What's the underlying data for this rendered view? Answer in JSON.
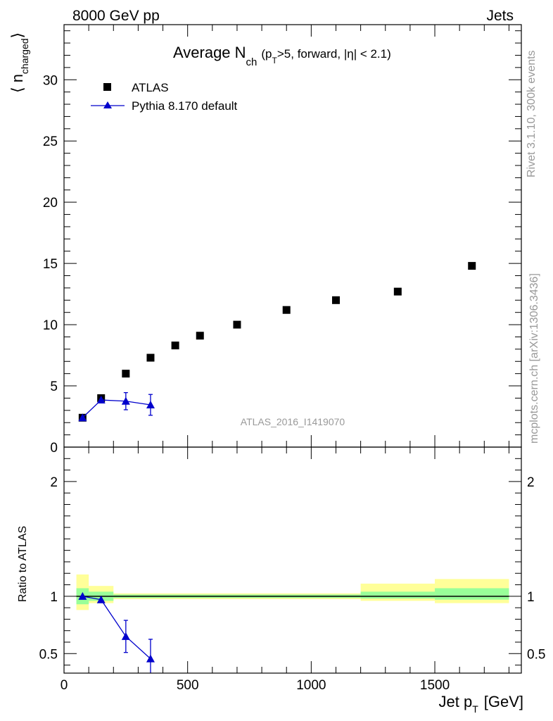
{
  "header": {
    "left": "8000 GeV pp",
    "right": "Jets"
  },
  "side_labels": {
    "rivet": "Rivet 3.1.10,  300k events",
    "mcplots": "mcplots.cern.ch [arXiv:1306.3436]"
  },
  "watermark": "ATLAS_2016_I1419070",
  "colors": {
    "data": "#000000",
    "mc": "#0000cc",
    "band_inner": "#99ff99",
    "band_outer": "#ffff99",
    "axis": "#000000",
    "watermark": "#999999"
  },
  "chart_data": [
    {
      "type": "scatter",
      "title_main": "Average N",
      "title_sub": "ch",
      "title_suffix_1": "(p",
      "title_suffix_sub": "T",
      "title_suffix_2": ">5, forward, |η| < 2.1)",
      "ylabel_main": "⟨ n",
      "ylabel_sub": "charged",
      "ylabel_close": "⟩",
      "xlim": [
        0,
        1850
      ],
      "ylim": [
        0,
        34.5
      ],
      "yticks": [
        0,
        5,
        10,
        15,
        20,
        25,
        30
      ],
      "ytick_labels": [
        "0",
        "5",
        "10",
        "15",
        "20",
        "25",
        "30"
      ],
      "legend_placement": "top-left",
      "series": [
        {
          "name": "ATLAS",
          "marker": "square",
          "x": [
            75,
            150,
            250,
            350,
            450,
            550,
            700,
            900,
            1100,
            1350,
            1650
          ],
          "y": [
            2.4,
            4.0,
            6.0,
            7.3,
            8.3,
            9.1,
            10.0,
            11.2,
            12.0,
            12.7,
            14.8
          ]
        },
        {
          "name": "Pythia 8.170 default",
          "marker": "triangle",
          "x": [
            75,
            150,
            250,
            350
          ],
          "y": [
            2.4,
            3.85,
            3.75,
            3.45
          ],
          "yerr": [
            0.05,
            0.1,
            0.7,
            0.85
          ]
        }
      ]
    },
    {
      "type": "line",
      "ylabel": "Ratio to ATLAS",
      "xlabel_main": "Jet p",
      "xlabel_sub": "T",
      "xlabel_unit": "[GeV]",
      "xlim": [
        0,
        1850
      ],
      "ylim": [
        0.33,
        2.3
      ],
      "yticks": [
        0.5,
        1,
        2
      ],
      "ytick_labels": [
        "0.5",
        "1",
        "2"
      ],
      "xticks": [
        0,
        500,
        1000,
        1500
      ],
      "xtick_labels": [
        "0",
        "500",
        "1000",
        "1500"
      ],
      "bands": [
        {
          "x0": 50,
          "x1": 100,
          "inner": [
            0.93,
            1.07
          ],
          "outer": [
            0.88,
            1.19
          ]
        },
        {
          "x0": 100,
          "x1": 200,
          "inner": [
            0.96,
            1.04
          ],
          "outer": [
            0.94,
            1.09
          ]
        },
        {
          "x0": 200,
          "x1": 1200,
          "inner": [
            0.985,
            1.015
          ],
          "outer": [
            0.975,
            1.025
          ]
        },
        {
          "x0": 1200,
          "x1": 1500,
          "inner": [
            0.98,
            1.04
          ],
          "outer": [
            0.96,
            1.11
          ]
        },
        {
          "x0": 1500,
          "x1": 1800,
          "inner": [
            0.97,
            1.07
          ],
          "outer": [
            0.94,
            1.15
          ]
        }
      ],
      "series": [
        {
          "name": "Pythia 8.170 default",
          "x": [
            75,
            150,
            250,
            350
          ],
          "y": [
            1.0,
            0.97,
            0.65,
            0.455
          ],
          "yerr": [
            0.01,
            0.02,
            0.14,
            0.17
          ]
        }
      ]
    }
  ]
}
